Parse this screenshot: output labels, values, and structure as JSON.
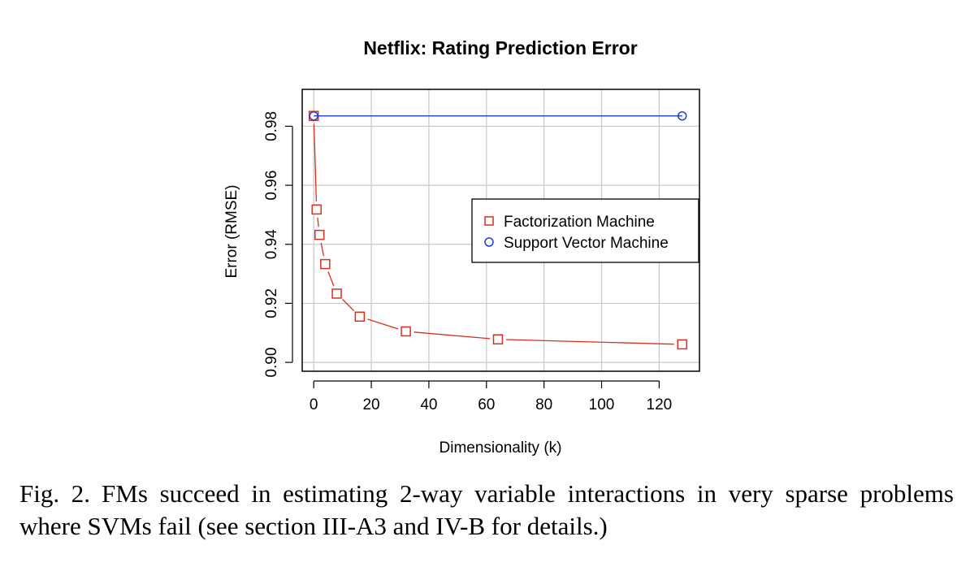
{
  "chart_data": {
    "type": "line",
    "title": "Netflix: Rating Prediction Error",
    "xlabel": "Dimensionality (k)",
    "ylabel": "Error (RMSE)",
    "xlim": [
      -4,
      134
    ],
    "ylim": [
      0.897,
      0.9925
    ],
    "xticks": [
      0,
      20,
      40,
      60,
      80,
      100,
      120
    ],
    "yticks": [
      0.9,
      0.92,
      0.94,
      0.96,
      0.98
    ],
    "xtick_labels": [
      "0",
      "20",
      "40",
      "60",
      "80",
      "100",
      "120"
    ],
    "ytick_labels": [
      "0.90",
      "0.92",
      "0.94",
      "0.96",
      "0.98"
    ],
    "grid": true,
    "legend_position": "right, upper-middle",
    "series": [
      {
        "name": "Factorization Machine",
        "color": "#d7301f",
        "marker": "square",
        "x": [
          0,
          1,
          2,
          4,
          8,
          16,
          32,
          64,
          128
        ],
        "y": [
          0.9835,
          0.9518,
          0.9432,
          0.9333,
          0.9233,
          0.9155,
          0.9105,
          0.9078,
          0.9061
        ]
      },
      {
        "name": "Support Vector Machine",
        "color": "#1f3fd6",
        "marker": "circle",
        "x": [
          0,
          128
        ],
        "y": [
          0.9835,
          0.9835
        ]
      }
    ]
  },
  "caption": {
    "label": "Fig. 2.",
    "text": "FMs succeed in estimating 2-way variable interactions in very sparse problems where SVMs fail (see section III-A3 and IV-B for details.)"
  }
}
